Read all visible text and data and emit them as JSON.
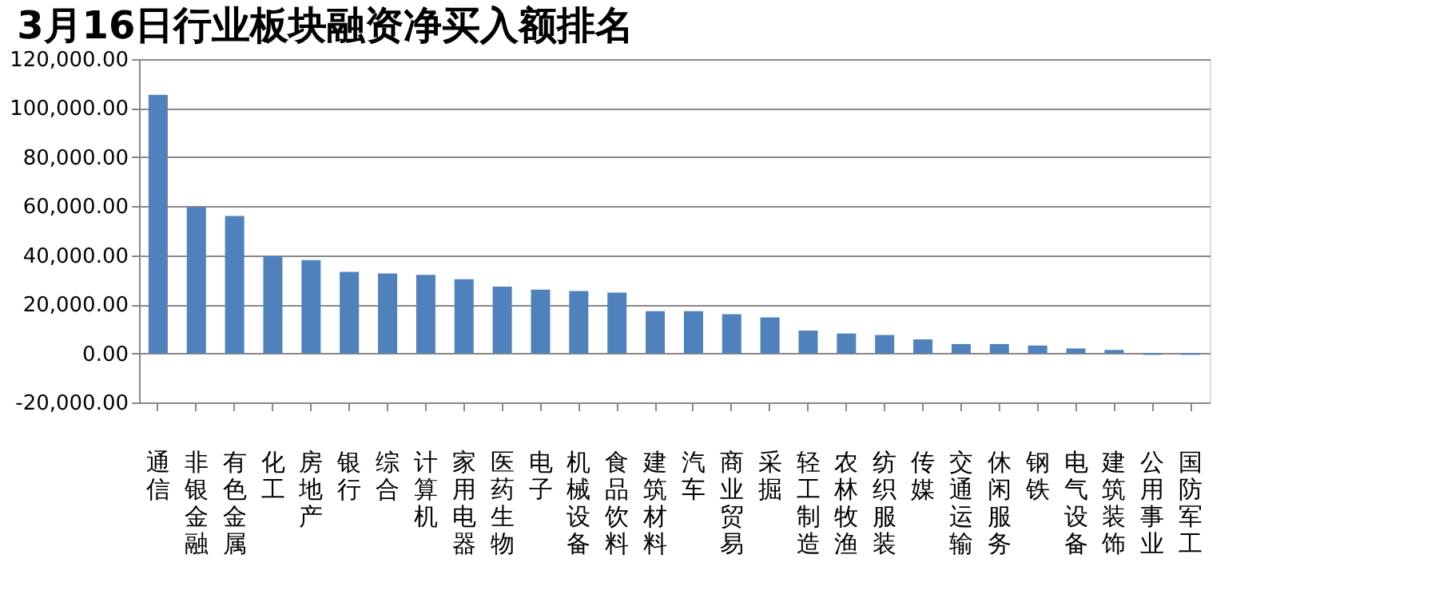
{
  "chart_data": {
    "type": "bar",
    "title": "3月16日行业板块融资净买入额排名",
    "categories": [
      "通信",
      "非银金融",
      "有色金属",
      "化工",
      "房地产",
      "银行",
      "综合",
      "计算机",
      "家用电器",
      "医药生物",
      "电子",
      "机械设备",
      "食品饮料",
      "建筑材料",
      "汽车",
      "商业贸易",
      "采掘",
      "轻工制造",
      "农林牧渔",
      "纺织服装",
      "传媒",
      "交通运输",
      "休闲服务",
      "钢铁",
      "电气设备",
      "建筑装饰",
      "公用事业",
      "国防军工"
    ],
    "values": [
      105400,
      59600,
      56000,
      39600,
      38000,
      33200,
      32600,
      32000,
      30200,
      27200,
      26000,
      25400,
      24800,
      17200,
      17200,
      16000,
      14700,
      9300,
      8100,
      7500,
      5700,
      3800,
      3800,
      3200,
      2000,
      1400,
      -600,
      -600
    ],
    "color": "#4f81bd",
    "ylim": [
      -20000,
      120000
    ],
    "yticks": [
      {
        "value": -20000,
        "label": "-20,000.00"
      },
      {
        "value": 0,
        "label": "0.00"
      },
      {
        "value": 20000,
        "label": "20,000.00"
      },
      {
        "value": 40000,
        "label": "40,000.00"
      },
      {
        "value": 60000,
        "label": "60,000.00"
      },
      {
        "value": 80000,
        "label": "80,000.00"
      },
      {
        "value": 100000,
        "label": "100,000.00"
      },
      {
        "value": 120000,
        "label": "120,000.00"
      }
    ],
    "grid": "y"
  }
}
